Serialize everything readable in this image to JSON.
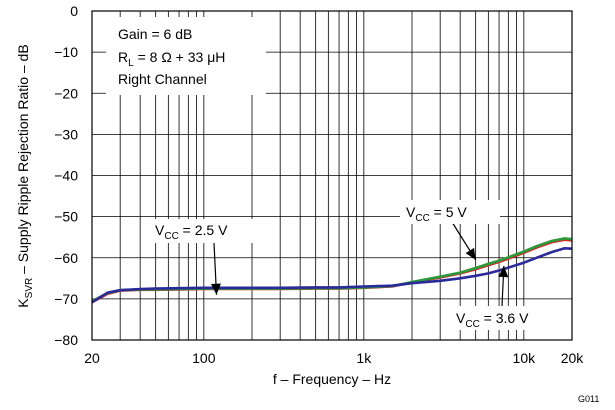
{
  "chart_data": {
    "type": "line",
    "xscale": "log",
    "xlim": [
      20,
      20000
    ],
    "ylim": [
      -80,
      0
    ],
    "grid": true,
    "xlabel": "f – Frequency – Hz",
    "ylabel": "K_SVR – Supply Ripple Rejection Ratio – dB",
    "xtick_labels": [
      {
        "value": 20,
        "label": "20"
      },
      {
        "value": 100,
        "label": "100"
      },
      {
        "value": 1000,
        "label": "1k"
      },
      {
        "value": 10000,
        "label": "10k"
      },
      {
        "value": 20000,
        "label": "20k"
      }
    ],
    "ytick_labels": [
      {
        "value": 0,
        "label": "0"
      },
      {
        "value": -10,
        "label": "−10"
      },
      {
        "value": -20,
        "label": "−20"
      },
      {
        "value": -30,
        "label": "−30"
      },
      {
        "value": -40,
        "label": "−40"
      },
      {
        "value": -50,
        "label": "−50"
      },
      {
        "value": -60,
        "label": "−60"
      },
      {
        "value": -70,
        "label": "−70"
      },
      {
        "value": -80,
        "label": "−80"
      }
    ],
    "conditions": [
      "Gain = 6 dB",
      "R_L = 8 Ω + 33 μH",
      "Right Channel"
    ],
    "figure_id": "G011",
    "series": [
      {
        "name": "V_CC = 5 V",
        "color": "#d22a2a",
        "label_at": {
          "x": 5000,
          "y": -60.5
        },
        "x": [
          20,
          25,
          30,
          40,
          50,
          70,
          100,
          150,
          200,
          300,
          500,
          700,
          1000,
          1500,
          2000,
          3000,
          4000,
          5000,
          6000,
          7000,
          8000,
          10000,
          12000,
          15000,
          18000,
          20000
        ],
        "y": [
          -70.8,
          -68.8,
          -68,
          -67.8,
          -67.8,
          -67.7,
          -67.6,
          -67.6,
          -67.6,
          -67.6,
          -67.5,
          -67.5,
          -67.3,
          -67.0,
          -66.0,
          -64.8,
          -63.8,
          -62.8,
          -61.8,
          -61.0,
          -60.2,
          -58.8,
          -57.5,
          -56.2,
          -55.6,
          -55.8
        ]
      },
      {
        "name": "V_CC = 2.5 V",
        "color": "#2a9a3a",
        "label_at": {
          "x": 120,
          "y": -69.0
        },
        "x": [
          20,
          25,
          30,
          40,
          50,
          70,
          100,
          150,
          200,
          300,
          500,
          700,
          1000,
          1500,
          2000,
          3000,
          4000,
          5000,
          6000,
          7000,
          8000,
          10000,
          12000,
          15000,
          18000,
          20000
        ],
        "y": [
          -70.6,
          -68.6,
          -67.9,
          -67.7,
          -67.7,
          -67.6,
          -67.5,
          -67.5,
          -67.5,
          -67.5,
          -67.4,
          -67.4,
          -67.2,
          -66.9,
          -65.9,
          -64.6,
          -63.6,
          -62.5,
          -61.5,
          -60.7,
          -59.9,
          -58.5,
          -57.2,
          -55.9,
          -55.3,
          -55.5
        ]
      },
      {
        "name": "V_CC = 3.6 V",
        "color": "#2a2a9a",
        "label_at": {
          "x": 7500,
          "y": -62.0
        },
        "x": [
          20,
          25,
          30,
          40,
          50,
          70,
          100,
          150,
          200,
          300,
          500,
          700,
          1000,
          1500,
          2000,
          3000,
          4000,
          5000,
          6000,
          7000,
          8000,
          10000,
          12000,
          15000,
          18000,
          20000
        ],
        "y": [
          -70.8,
          -68.5,
          -67.9,
          -67.6,
          -67.5,
          -67.4,
          -67.3,
          -67.3,
          -67.3,
          -67.3,
          -67.2,
          -67.2,
          -67.0,
          -66.8,
          -66.2,
          -65.6,
          -65.0,
          -64.4,
          -63.8,
          -63.1,
          -62.4,
          -61.2,
          -60.0,
          -58.6,
          -57.7,
          -57.8
        ]
      }
    ]
  },
  "legend_labels": [
    {
      "main": "V",
      "sub": "CC",
      "rest": " = 5 V"
    },
    {
      "main": "V",
      "sub": "CC",
      "rest": " = 2.5 V"
    },
    {
      "main": "V",
      "sub": "CC",
      "rest": " = 3.6 V"
    }
  ],
  "ylabel_parts": {
    "main": "K",
    "sub": "SVR",
    "rest": " – Supply Ripple Rejection Ratio – dB"
  },
  "condition_lines": {
    "gain": "Gain = 6 dB",
    "load_main": "R",
    "load_sub": "L",
    "load_rest": " = 8 Ω + 33 μH",
    "channel": "Right Channel"
  }
}
